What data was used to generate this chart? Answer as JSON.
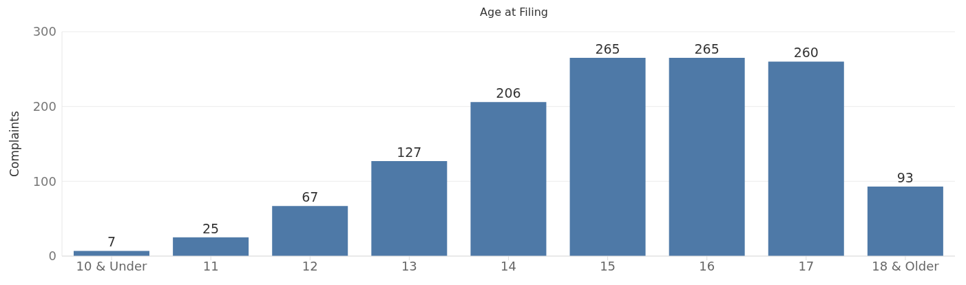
{
  "chart_data": {
    "type": "bar",
    "title": "Age at Filing",
    "ylabel": "Complaints",
    "categories": [
      "10 & Under",
      "11",
      "12",
      "13",
      "14",
      "15",
      "16",
      "17",
      "18 & Older"
    ],
    "values": [
      7,
      25,
      67,
      127,
      206,
      265,
      265,
      260,
      93
    ],
    "color": "#4e79a7",
    "ylim": [
      0,
      300
    ],
    "yticks": [
      0,
      100,
      200,
      300
    ],
    "grid": "y",
    "data_labels": true
  }
}
